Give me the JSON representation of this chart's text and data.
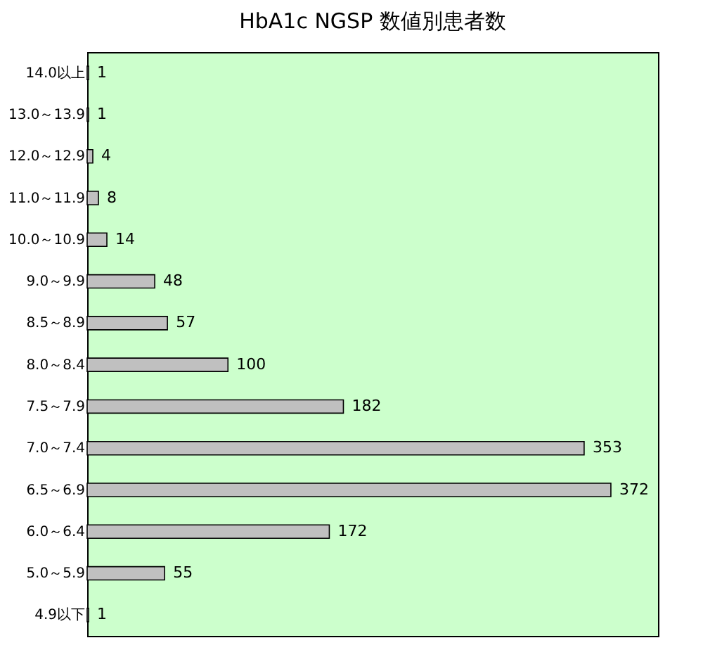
{
  "chart_data": {
    "type": "bar",
    "orientation": "horizontal",
    "title": "HbA1c NGSP 数値別患者数",
    "categories": [
      "14.0以上",
      "13.0～13.9",
      "12.0～12.9",
      "11.0～11.9",
      "10.0～10.9",
      "9.0～9.9",
      "8.5～8.9",
      "8.0～8.4",
      "7.5～7.9",
      "7.0～7.4",
      "6.5～6.9",
      "6.0～6.4",
      "5.0～5.9",
      "4.9以下"
    ],
    "values": [
      1,
      1,
      4,
      8,
      14,
      48,
      57,
      100,
      182,
      353,
      372,
      172,
      55,
      1
    ],
    "color": "#c0c0c0",
    "data_labels": true,
    "grid": false
  }
}
